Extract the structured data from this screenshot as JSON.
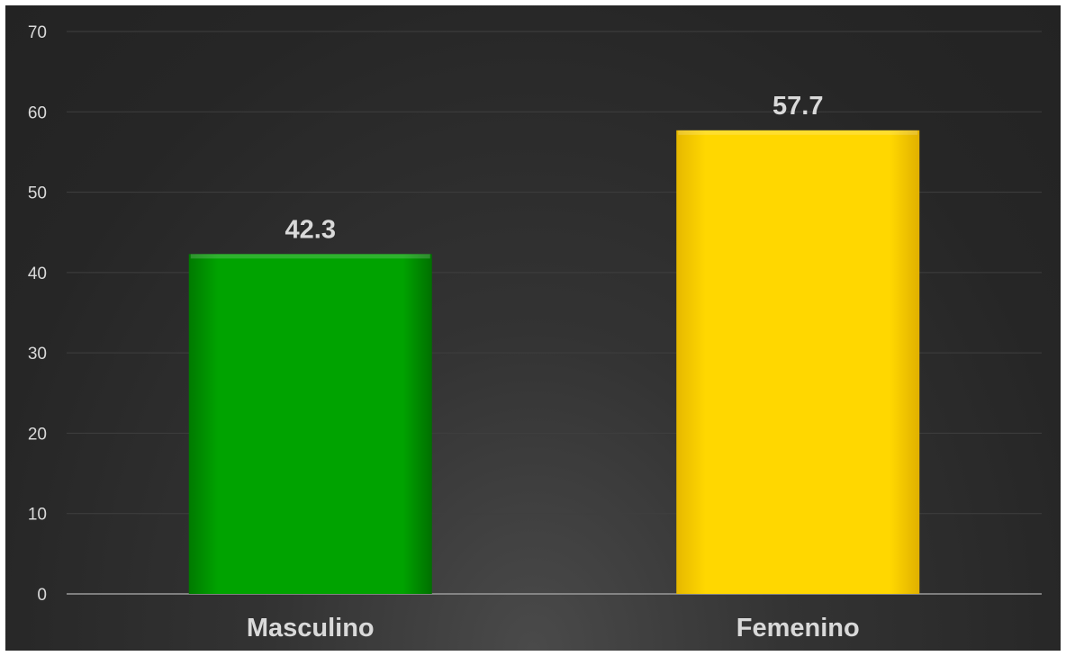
{
  "chart_data": {
    "type": "bar",
    "categories": [
      "Masculino",
      "Femenino"
    ],
    "values": [
      42.3,
      57.7
    ],
    "value_labels": [
      "42.3",
      "57.7"
    ],
    "bar_colors": [
      "#00a000",
      "#ffd700"
    ],
    "title": "",
    "xlabel": "",
    "ylabel": "",
    "ylim": [
      0,
      70
    ],
    "yticks": [
      "0",
      "10",
      "20",
      "30",
      "40",
      "50",
      "60",
      "70"
    ],
    "grid": true,
    "legend": "none",
    "background": "dark"
  }
}
